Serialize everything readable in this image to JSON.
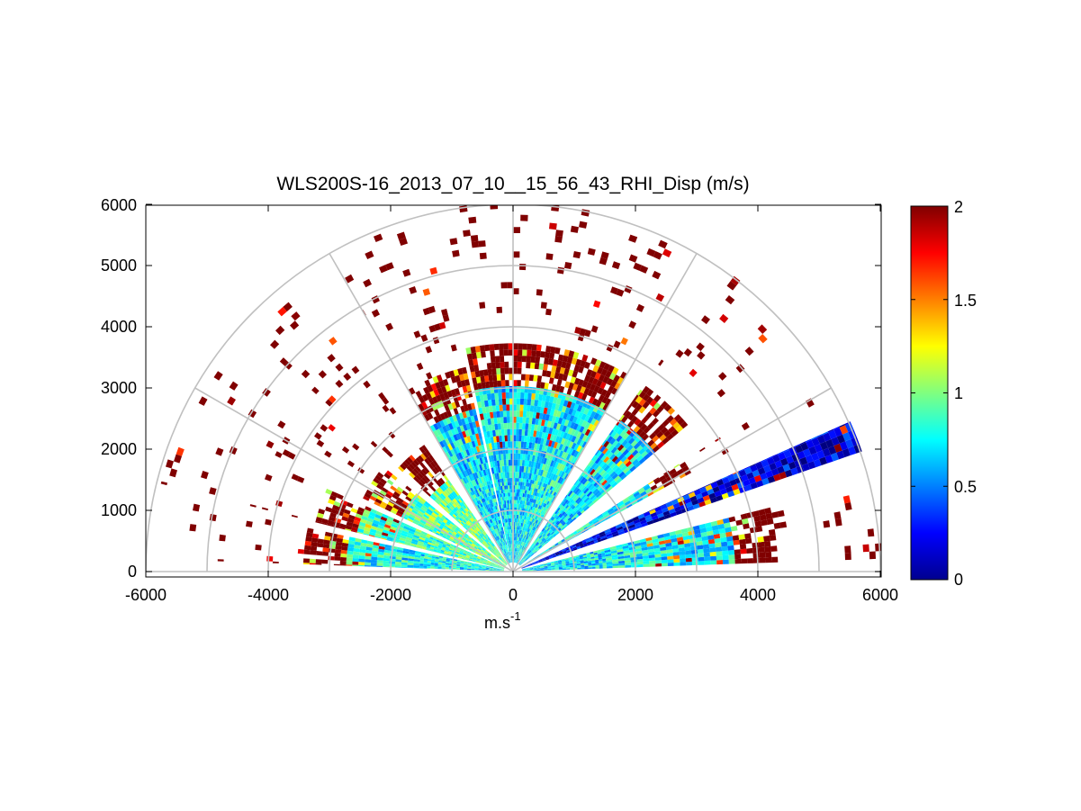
{
  "chart_data": {
    "type": "heatmap",
    "subtype": "polar-rhi",
    "title": "WLS200S-16_2013_07_10__15_56_43_RHI_Disp (m/s)",
    "xlabel": "m.s",
    "xlabel_superscript": "-1",
    "ylabel": "",
    "xlim": [
      -6000,
      6000
    ],
    "ylim": [
      -100,
      6000
    ],
    "x_ticks": [
      "-6000",
      "-4000",
      "-2000",
      "0",
      "2000",
      "4000",
      "6000"
    ],
    "y_ticks": [
      "0",
      "1000",
      "2000",
      "3000",
      "4000",
      "5000",
      "6000"
    ],
    "range_rings": [
      1000,
      2000,
      3000,
      4000,
      5000,
      6000
    ],
    "radial_lines_deg": [
      0,
      30,
      60,
      90,
      120,
      150,
      180
    ],
    "colorbar": {
      "min": 0,
      "max": 2,
      "ticks": [
        "0",
        "0.5",
        "1",
        "1.5",
        "2"
      ],
      "colormap": "jet"
    },
    "colors": {
      "grid": "#c0c0c0",
      "high": "#800000",
      "low": "#00008f"
    },
    "sectors": [
      {
        "az_deg": [
          2,
          14
        ],
        "mean": 0.72,
        "high_range": 3600
      },
      {
        "az_deg": [
          19,
          24
        ],
        "mean": 0.2,
        "high_range": 9999
      },
      {
        "az_deg": [
          29,
          33
        ],
        "mean": 0.75,
        "high_range": 2600
      },
      {
        "az_deg": [
          40,
          55
        ],
        "mean": 0.7,
        "high_range": 3000
      },
      {
        "az_deg": [
          60,
          78
        ],
        "mean": 0.75,
        "high_range": 3000
      },
      {
        "az_deg": [
          78,
          102
        ],
        "mean": 0.7,
        "high_range": 2950
      },
      {
        "az_deg": [
          103,
          120
        ],
        "mean": 0.7,
        "high_range": 2700
      },
      {
        "az_deg": [
          125,
          138
        ],
        "mean": 0.95,
        "high_range": 1800
      },
      {
        "az_deg": [
          141,
          154
        ],
        "mean": 0.95,
        "high_range": 2000
      },
      {
        "az_deg": [
          156,
          166
        ],
        "mean": 0.9,
        "high_range": 2600
      },
      {
        "az_deg": [
          168,
          178
        ],
        "mean": 0.75,
        "high_range": 2700
      }
    ]
  }
}
